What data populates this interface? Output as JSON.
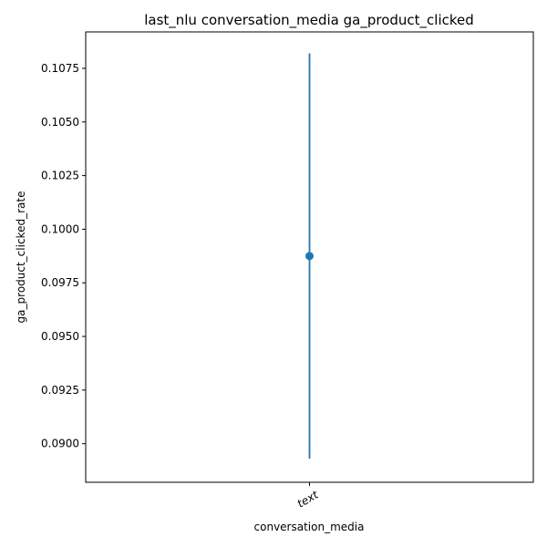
{
  "chart_data": {
    "type": "scatter",
    "title": "last_nlu conversation_media ga_product_clicked",
    "xlabel": "conversation_media",
    "ylabel": "ga_product_clicked_rate",
    "categories": [
      "text"
    ],
    "points": [
      {
        "category": "text",
        "y": 0.09875,
        "y_low": 0.0893,
        "y_high": 0.1082
      }
    ],
    "ylim": [
      0.0882,
      0.1092
    ],
    "y_ticks": [
      0.09,
      0.0925,
      0.095,
      0.0975,
      0.1,
      0.1025,
      0.105,
      0.1075
    ],
    "y_tick_labels": [
      "0.0900",
      "0.0925",
      "0.0950",
      "0.0975",
      "0.1000",
      "0.1025",
      "0.1050",
      "0.1075"
    ],
    "grid": false,
    "legend": "none",
    "colors": {
      "series": "#1f77b4",
      "axes": "#000000"
    }
  }
}
